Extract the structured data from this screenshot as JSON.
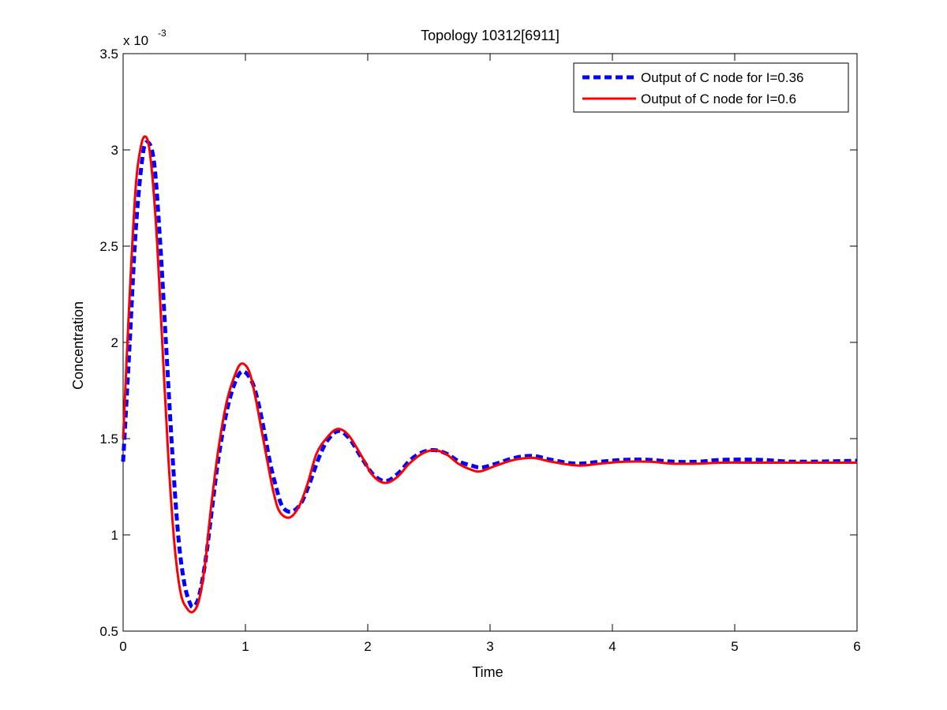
{
  "chart_data": {
    "type": "line",
    "title": "Topology 10312[6911]",
    "xlabel": "Time",
    "ylabel": "Concentration",
    "y_multiplier_prefix": "x 10",
    "y_multiplier_exponent": "-3",
    "xlim": [
      0,
      6
    ],
    "ylim": [
      0.5,
      3.5
    ],
    "xticks": [
      0,
      1,
      2,
      3,
      4,
      5,
      6
    ],
    "xtick_labels": [
      "0",
      "1",
      "2",
      "3",
      "4",
      "5",
      "6"
    ],
    "yticks": [
      0.5,
      1,
      1.5,
      2,
      2.5,
      3,
      3.5
    ],
    "ytick_labels": [
      "0.5",
      "1",
      "1.5",
      "2",
      "2.5",
      "3",
      "3.5"
    ],
    "grid": false,
    "legend_position": "top-right",
    "series": [
      {
        "name": "Output of C node for I=0.36",
        "color": "#0000ff",
        "style": "dashed",
        "x": [
          0,
          0.05,
          0.1,
          0.15,
          0.19,
          0.25,
          0.3,
          0.35,
          0.4,
          0.45,
          0.5,
          0.55,
          0.58,
          0.62,
          0.67,
          0.72,
          0.78,
          0.85,
          0.92,
          0.98,
          1.05,
          1.1,
          1.15,
          1.2,
          1.25,
          1.3,
          1.37,
          1.45,
          1.52,
          1.6,
          1.67,
          1.76,
          1.85,
          1.95,
          2.05,
          2.15,
          2.25,
          2.35,
          2.45,
          2.55,
          2.65,
          2.75,
          2.85,
          2.93,
          3.05,
          3.2,
          3.35,
          3.5,
          3.7,
          3.9,
          4.1,
          4.3,
          4.5,
          4.7,
          4.9,
          5.2,
          5.5,
          6.0
        ],
        "y": [
          1.38,
          1.95,
          2.55,
          2.92,
          3.04,
          2.95,
          2.55,
          2.0,
          1.45,
          1.0,
          0.75,
          0.64,
          0.63,
          0.68,
          0.85,
          1.1,
          1.4,
          1.65,
          1.8,
          1.85,
          1.8,
          1.7,
          1.55,
          1.38,
          1.25,
          1.15,
          1.12,
          1.16,
          1.26,
          1.4,
          1.49,
          1.54,
          1.5,
          1.4,
          1.31,
          1.28,
          1.32,
          1.39,
          1.43,
          1.44,
          1.42,
          1.38,
          1.36,
          1.35,
          1.37,
          1.4,
          1.41,
          1.39,
          1.37,
          1.38,
          1.39,
          1.39,
          1.38,
          1.38,
          1.39,
          1.39,
          1.38,
          1.385
        ]
      },
      {
        "name": "Output of C node for I=0.6",
        "color": "#ff0000",
        "style": "solid",
        "x": [
          0,
          0.05,
          0.1,
          0.14,
          0.18,
          0.22,
          0.27,
          0.32,
          0.37,
          0.42,
          0.47,
          0.52,
          0.57,
          0.62,
          0.67,
          0.72,
          0.78,
          0.85,
          0.92,
          0.97,
          1.03,
          1.08,
          1.13,
          1.18,
          1.23,
          1.28,
          1.36,
          1.44,
          1.51,
          1.58,
          1.66,
          1.75,
          1.84,
          1.94,
          2.04,
          2.14,
          2.24,
          2.34,
          2.44,
          2.54,
          2.64,
          2.74,
          2.84,
          2.92,
          3.05,
          3.2,
          3.35,
          3.5,
          3.72,
          3.9,
          4.1,
          4.3,
          4.5,
          4.7,
          4.9,
          5.2,
          5.5,
          6.0
        ],
        "y": [
          1.5,
          2.2,
          2.78,
          3.0,
          3.07,
          2.98,
          2.6,
          2.0,
          1.4,
          0.95,
          0.7,
          0.62,
          0.6,
          0.66,
          0.85,
          1.15,
          1.45,
          1.7,
          1.84,
          1.89,
          1.85,
          1.72,
          1.55,
          1.38,
          1.22,
          1.12,
          1.09,
          1.15,
          1.27,
          1.42,
          1.5,
          1.55,
          1.52,
          1.42,
          1.31,
          1.27,
          1.3,
          1.37,
          1.42,
          1.44,
          1.42,
          1.37,
          1.34,
          1.33,
          1.36,
          1.39,
          1.4,
          1.38,
          1.36,
          1.37,
          1.38,
          1.38,
          1.37,
          1.37,
          1.375,
          1.375,
          1.375,
          1.375
        ]
      }
    ]
  }
}
